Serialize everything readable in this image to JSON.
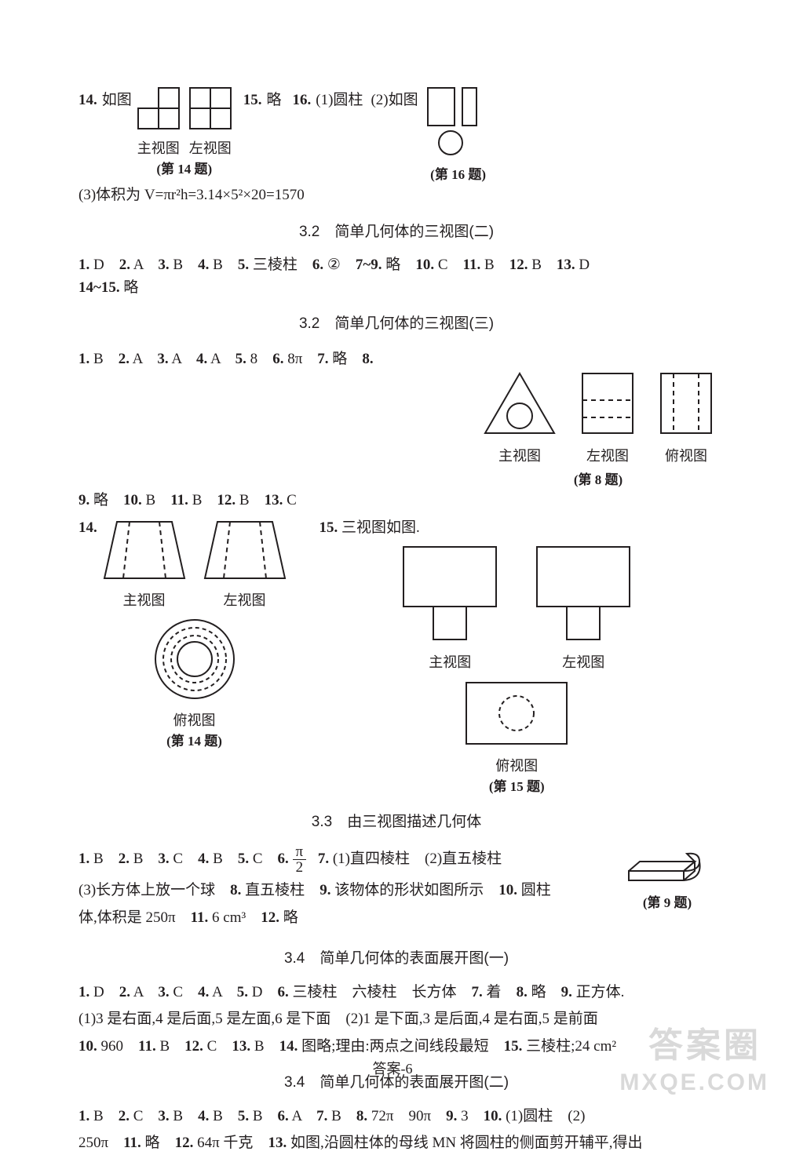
{
  "colors": {
    "text": "#231f20",
    "stroke": "#231f20",
    "bg": "#ffffff",
    "watermark": "#d9d9d9"
  },
  "row14": {
    "num": "14.",
    "label": "如图",
    "zhu_label": "主视图",
    "zuo_label": "左视图",
    "caption": "(第 14 题)",
    "num15": "15.",
    "a15": "略",
    "num16": "16.",
    "a16_1": "(1)圆柱",
    "a16_2": "(2)如图",
    "caption16": "(第 16 题)"
  },
  "vol_line": "(3)体积为 V=πr²h=3.14×5²×20=1570",
  "sec32_2_title": "3.2　简单几何体的三视图(二)",
  "sec32_2_answers": {
    "parts": [
      {
        "n": "1.",
        "v": "D"
      },
      {
        "n": "2.",
        "v": "A"
      },
      {
        "n": "3.",
        "v": "B"
      },
      {
        "n": "4.",
        "v": "B"
      },
      {
        "n": "5.",
        "v": "三棱柱"
      },
      {
        "n": "6.",
        "v": "②"
      },
      {
        "n": "7~9.",
        "v": "略"
      },
      {
        "n": "10.",
        "v": "C"
      },
      {
        "n": "11.",
        "v": "B"
      },
      {
        "n": "12.",
        "v": "B"
      },
      {
        "n": "13.",
        "v": "D"
      }
    ],
    "tail": {
      "n": "14~15.",
      "v": "略"
    }
  },
  "sec32_3_title": "3.2　简单几何体的三视图(三)",
  "sec32_3_row1": [
    {
      "n": "1.",
      "v": "B"
    },
    {
      "n": "2.",
      "v": "A"
    },
    {
      "n": "3.",
      "v": "A"
    },
    {
      "n": "4.",
      "v": "A"
    },
    {
      "n": "5.",
      "v": "8"
    },
    {
      "n": "6.",
      "v": "8π"
    },
    {
      "n": "7.",
      "v": "略"
    },
    {
      "n": "8.",
      "v": ""
    }
  ],
  "q8": {
    "zhu": "主视图",
    "zuo": "左视图",
    "fu": "俯视图",
    "caption": "(第 8 题)"
  },
  "sec32_3_row2": [
    {
      "n": "9.",
      "v": "略"
    },
    {
      "n": "10.",
      "v": "B"
    },
    {
      "n": "11.",
      "v": "B"
    },
    {
      "n": "12.",
      "v": "B"
    },
    {
      "n": "13.",
      "v": "C"
    }
  ],
  "q14b": {
    "num": "14.",
    "zhu": "主视图",
    "zuo": "左视图",
    "fu": "俯视图",
    "caption": "(第 14 题)"
  },
  "q15": {
    "num": "15.",
    "label": "三视图如图.",
    "zhu": "主视图",
    "zuo": "左视图",
    "fu": "俯视图",
    "caption": "(第 15 题)"
  },
  "sec33_title": "3.3　由三视图描述几何体",
  "sec33_row": [
    {
      "n": "1.",
      "v": "B"
    },
    {
      "n": "2.",
      "v": "B"
    },
    {
      "n": "3.",
      "v": "C"
    },
    {
      "n": "4.",
      "v": "B"
    },
    {
      "n": "5.",
      "v": "C"
    },
    {
      "n": "6.",
      "v": ""
    }
  ],
  "sec33_frac": {
    "up": "π",
    "dn": "2"
  },
  "sec33_after6": {
    "n": "7.",
    "v": "(1)直四棱柱　(2)直五棱柱"
  },
  "sec33_line2": "(3)长方体上放一个球　",
  "sec33_line2b": [
    {
      "n": "8.",
      "v": "直五棱柱"
    },
    {
      "n": "9.",
      "v": "该物体的形状如图所示"
    },
    {
      "n": "10.",
      "v": "圆柱"
    }
  ],
  "sec33_line3_prefix": "体,体积是 250π　",
  "sec33_line3b": [
    {
      "n": "11.",
      "v": "6 cm³"
    },
    {
      "n": "12.",
      "v": "略"
    }
  ],
  "q9_caption": "(第 9 题)",
  "sec34_1_title": "3.4　简单几何体的表面展开图(一)",
  "sec34_1_row": [
    {
      "n": "1.",
      "v": "D"
    },
    {
      "n": "2.",
      "v": "A"
    },
    {
      "n": "3.",
      "v": "C"
    },
    {
      "n": "4.",
      "v": "A"
    },
    {
      "n": "5.",
      "v": "D"
    },
    {
      "n": "6.",
      "v": "三棱柱　六棱柱　长方体"
    },
    {
      "n": "7.",
      "v": "着"
    },
    {
      "n": "8.",
      "v": "略"
    },
    {
      "n": "9.",
      "v": "正方体."
    }
  ],
  "sec34_1_line2": "(1)3 是右面,4 是后面,5 是左面,6 是下面　(2)1 是下面,3 是后面,4 是右面,5 是前面",
  "sec34_1_row3": [
    {
      "n": "10.",
      "v": "960"
    },
    {
      "n": "11.",
      "v": "B"
    },
    {
      "n": "12.",
      "v": "C"
    },
    {
      "n": "13.",
      "v": "B"
    },
    {
      "n": "14.",
      "v": "图略;理由:两点之间线段最短"
    },
    {
      "n": "15.",
      "v": "三棱柱;24 cm²"
    }
  ],
  "sec34_2_title": "3.4　简单几何体的表面展开图(二)",
  "sec34_2_row": [
    {
      "n": "1.",
      "v": "B"
    },
    {
      "n": "2.",
      "v": "C"
    },
    {
      "n": "3.",
      "v": "B"
    },
    {
      "n": "4.",
      "v": "B"
    },
    {
      "n": "5.",
      "v": "B"
    },
    {
      "n": "6.",
      "v": "A"
    },
    {
      "n": "7.",
      "v": "B"
    },
    {
      "n": "8.",
      "v": "72π　90π"
    },
    {
      "n": "9.",
      "v": "3"
    },
    {
      "n": "10.",
      "v": "(1)圆柱　(2)"
    }
  ],
  "sec34_2_line2_prefix": "250π　",
  "sec34_2_line2b": [
    {
      "n": "11.",
      "v": "略"
    },
    {
      "n": "12.",
      "v": "64π 千克"
    },
    {
      "n": "13.",
      "v": "如图,沿圆柱体的母线 MN 将圆柱的侧面剪开辅平,得出"
    }
  ],
  "footer": "答案-6",
  "watermark1": "答案圈",
  "watermark2": "MXQE.COM"
}
